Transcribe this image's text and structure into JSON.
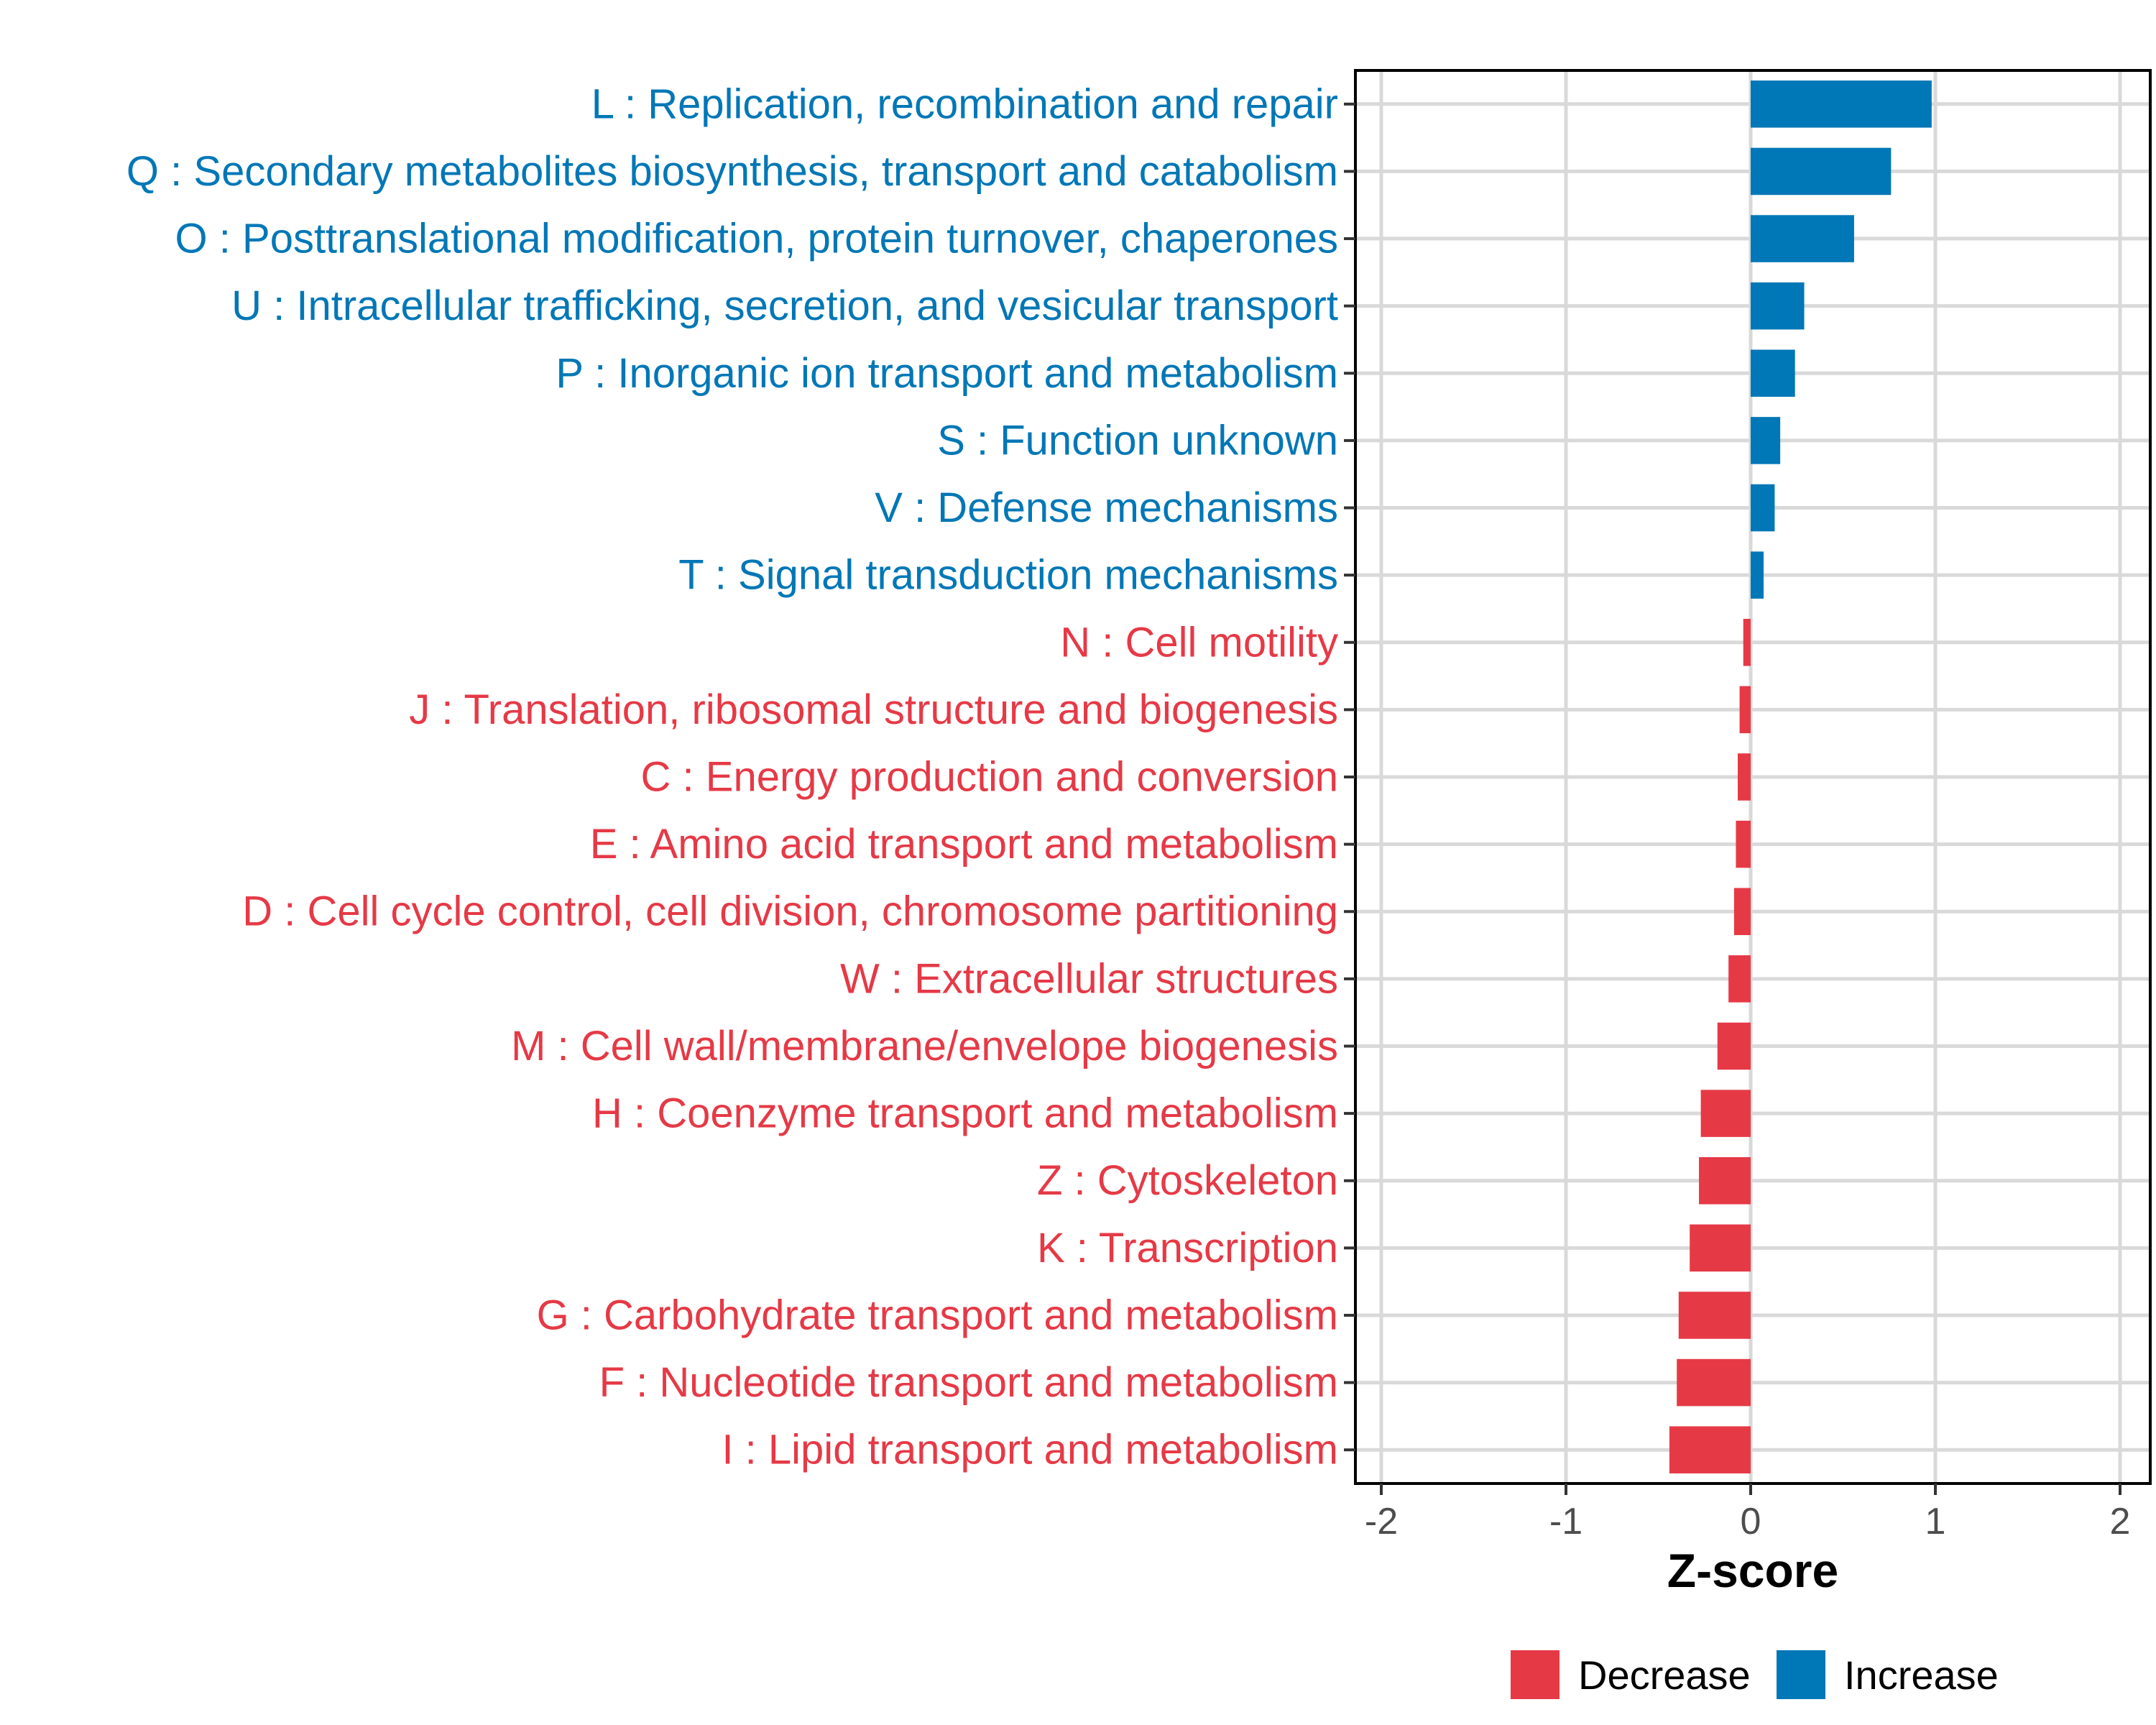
{
  "chart_data": {
    "type": "bar",
    "orientation": "horizontal",
    "xlabel": "Z-score",
    "xlim": [
      -2.2,
      2.2
    ],
    "xticks": [
      -2,
      -1,
      0,
      1,
      2
    ],
    "xtick_labels": [
      "-2",
      "-1",
      "0",
      "1",
      "2"
    ],
    "grid": true,
    "legend_position": "bottom",
    "legend": [
      {
        "name": "Decrease",
        "color": "#E63946"
      },
      {
        "name": "Increase",
        "color": "#0077B6"
      }
    ],
    "colors": {
      "Increase": "#0077B6",
      "Decrease": "#E63946"
    },
    "categories": [
      "L : Replication, recombination and repair",
      "Q : Secondary metabolites biosynthesis, transport and catabolism",
      "O : Posttranslational modification, protein turnover, chaperones",
      "U : Intracellular trafficking, secretion, and vesicular transport",
      "P : Inorganic ion transport and metabolism",
      "S : Function unknown",
      "V : Defense mechanisms",
      "T : Signal transduction mechanisms",
      "N : Cell motility",
      "J : Translation, ribosomal structure and biogenesis",
      "C : Energy production and conversion",
      "E : Amino acid transport and metabolism",
      "D : Cell cycle control, cell division, chromosome partitioning",
      "W : Extracellular structures",
      "M : Cell wall/membrane/envelope biogenesis",
      "H : Coenzyme transport and metabolism",
      "Z : Cytoskeleton",
      "K : Transcription",
      "G : Carbohydrate transport and metabolism",
      "F : Nucleotide transport and metabolism",
      "I : Lipid transport and metabolism"
    ],
    "values": [
      0.98,
      0.76,
      0.56,
      0.29,
      0.24,
      0.16,
      0.13,
      0.07,
      -0.04,
      -0.06,
      -0.07,
      -0.08,
      -0.09,
      -0.12,
      -0.18,
      -0.27,
      -0.28,
      -0.33,
      -0.39,
      -0.4,
      -0.44
    ],
    "groups": [
      "Increase",
      "Increase",
      "Increase",
      "Increase",
      "Increase",
      "Increase",
      "Increase",
      "Increase",
      "Decrease",
      "Decrease",
      "Decrease",
      "Decrease",
      "Decrease",
      "Decrease",
      "Decrease",
      "Decrease",
      "Decrease",
      "Decrease",
      "Decrease",
      "Decrease",
      "Decrease"
    ]
  }
}
